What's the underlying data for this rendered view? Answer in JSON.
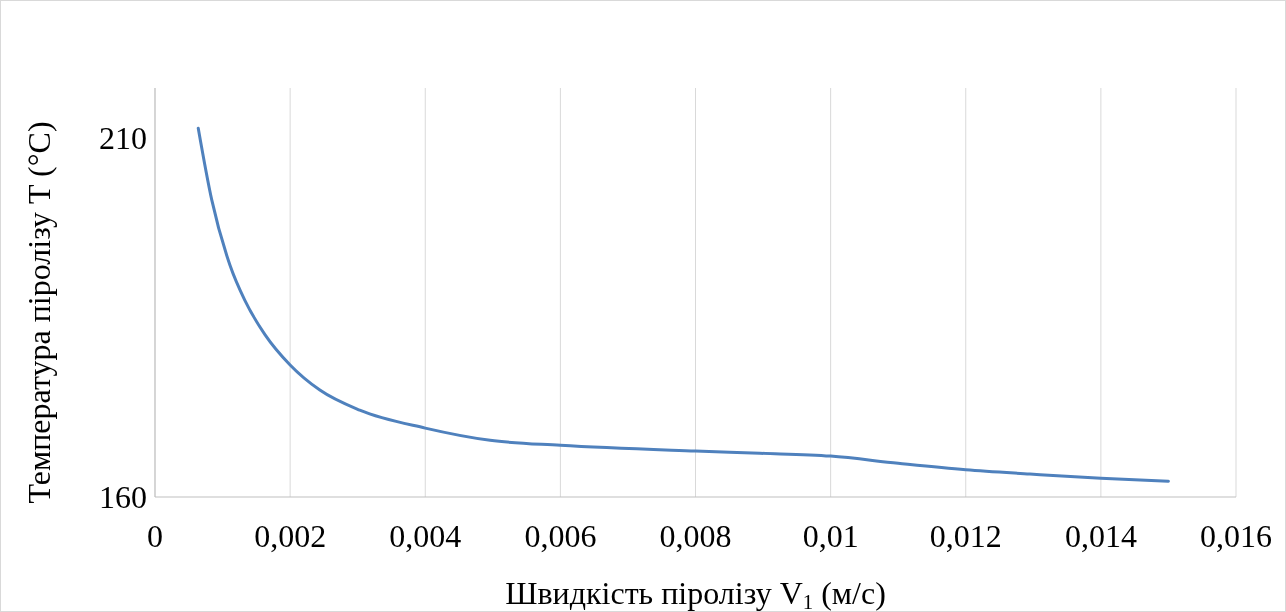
{
  "chart_data": {
    "type": "line",
    "xlabel": "Швидкість піролізу V$_{1}$ (м/с)",
    "ylabel": "Температура піролізу T (°C)",
    "xlim": [
      0,
      0.016
    ],
    "ylim": [
      160,
      217
    ],
    "xticks": [
      0,
      {
        "value": 0.002,
        "label": "0,002"
      },
      {
        "value": 0.004,
        "label": "0,004"
      },
      {
        "value": 0.006,
        "label": "0,006"
      },
      {
        "value": 0.008,
        "label": "0,008"
      },
      {
        "value": 0.01,
        "label": "0,01"
      },
      {
        "value": 0.012,
        "label": "0,012"
      },
      {
        "value": 0.014,
        "label": "0,014"
      },
      {
        "value": 0.016,
        "label": "0,016"
      }
    ],
    "yticks": [
      160,
      210
    ],
    "grid": "x",
    "series": [
      {
        "color": "#4f81bd",
        "x": [
          0.00064,
          0.00084,
          0.00111,
          0.00133,
          0.00163,
          0.002,
          0.00244,
          0.00303,
          0.004,
          0.00496,
          0.006,
          0.008,
          0.00895,
          0.01,
          0.011,
          0.012,
          0.01295,
          0.014,
          0.015
        ],
        "values": [
          211.4,
          201.4,
          192.3,
          187.4,
          182.6,
          178.4,
          174.9,
          172.1,
          169.6,
          167.9,
          167.2,
          166.4,
          166.1,
          165.7,
          164.7,
          163.8,
          163.2,
          162.6,
          162.2
        ]
      }
    ]
  }
}
